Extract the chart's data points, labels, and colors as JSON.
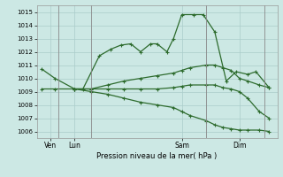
{
  "title": "Pression niveau de la mer( hPa )",
  "bg_color": "#cce8e4",
  "grid_color": "#aaccca",
  "line_color": "#2d6b2d",
  "ylim": [
    1005.5,
    1015.5
  ],
  "yticks": [
    1006,
    1007,
    1008,
    1009,
    1010,
    1011,
    1012,
    1013,
    1014,
    1015
  ],
  "xlim": [
    -0.3,
    14.3
  ],
  "xtick_positions": [
    0.5,
    2.0,
    8.5,
    12.0
  ],
  "xtick_labels": [
    "Ven",
    "Lun",
    "Sam",
    "Dim"
  ],
  "vline_positions": [
    1.0,
    3.0,
    10.0,
    13.5
  ],
  "series1_x": [
    0.0,
    0.8,
    2.0,
    2.5,
    3.5,
    4.2,
    4.8,
    5.4,
    6.0,
    6.6,
    7.0,
    7.6,
    8.0,
    8.5,
    9.2,
    9.8,
    10.5,
    11.2,
    11.8,
    12.5,
    13.0,
    13.8
  ],
  "series1_y": [
    1010.7,
    1010.0,
    1009.2,
    1009.2,
    1011.7,
    1012.2,
    1012.5,
    1012.6,
    1012.0,
    1012.6,
    1012.6,
    1012.0,
    1013.0,
    1014.8,
    1014.8,
    1014.8,
    1013.5,
    1009.8,
    1010.5,
    1010.3,
    1010.5,
    1009.3
  ],
  "series2_x": [
    0.0,
    0.8,
    2.0,
    3.0,
    4.0,
    5.0,
    6.0,
    7.0,
    8.0,
    8.5,
    9.0,
    10.0,
    10.5,
    11.0,
    11.5,
    12.0,
    12.5,
    13.2,
    13.8
  ],
  "series2_y": [
    1009.2,
    1009.2,
    1009.2,
    1009.2,
    1009.5,
    1009.8,
    1010.0,
    1010.2,
    1010.4,
    1010.6,
    1010.8,
    1011.0,
    1011.0,
    1010.8,
    1010.6,
    1010.0,
    1009.8,
    1009.5,
    1009.3
  ],
  "series3_x": [
    2.0,
    3.0,
    4.0,
    5.0,
    6.0,
    7.0,
    8.0,
    8.5,
    9.0,
    10.0,
    10.5,
    11.0,
    11.5,
    12.0,
    12.5,
    13.2,
    13.8
  ],
  "series3_y": [
    1009.2,
    1009.2,
    1009.2,
    1009.2,
    1009.2,
    1009.2,
    1009.3,
    1009.4,
    1009.5,
    1009.5,
    1009.5,
    1009.3,
    1009.2,
    1009.0,
    1008.5,
    1007.5,
    1007.0
  ],
  "series4_x": [
    2.0,
    3.0,
    4.0,
    5.0,
    6.0,
    7.0,
    8.0,
    8.5,
    9.0,
    10.0,
    10.5,
    11.0,
    11.5,
    12.0,
    12.5,
    13.2,
    13.8
  ],
  "series4_y": [
    1009.2,
    1009.0,
    1008.8,
    1008.5,
    1008.2,
    1008.0,
    1007.8,
    1007.5,
    1007.2,
    1006.8,
    1006.5,
    1006.3,
    1006.2,
    1006.1,
    1006.1,
    1006.1,
    1006.0
  ]
}
